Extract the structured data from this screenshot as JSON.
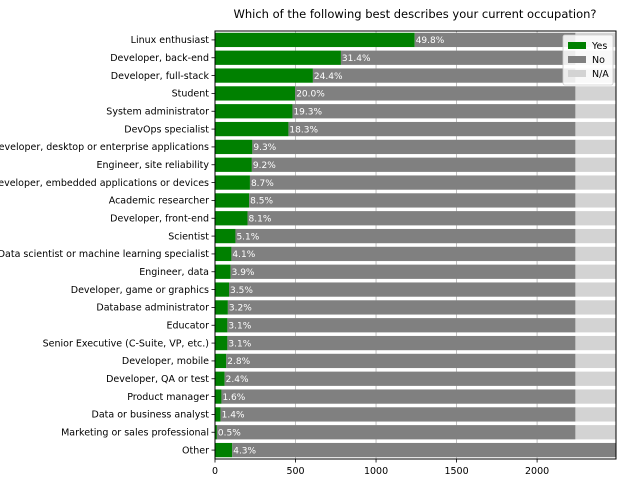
{
  "chart_data": {
    "type": "bar",
    "orientation": "horizontal",
    "stacked": true,
    "title": "Which of the following best describes your current occupation?",
    "xlabel": "",
    "ylabel": "",
    "xlim": [
      0,
      2490
    ],
    "xticks": [
      0,
      500,
      1000,
      1500,
      2000
    ],
    "grid": "vertical",
    "legend_position": "top-right",
    "categories": [
      "Linux enthusiast",
      "Developer, back-end",
      "Developer, full-stack",
      "Student",
      "System administrator",
      "DevOps specialist",
      "Developer, desktop or enterprise applications",
      "Engineer, site reliability",
      "Developer, embedded applications or devices",
      "Academic researcher",
      "Developer, front-end",
      "Scientist",
      "Data scientist or machine learning specialist",
      "Engineer, data",
      "Developer, game or graphics",
      "Database administrator",
      "Educator",
      "Senior Executive (C-Suite, VP, etc.)",
      "Developer, mobile",
      "Developer, QA or test",
      "Product manager",
      "Data or business analyst",
      "Marketing or sales professional",
      "Other"
    ],
    "bar_labels": [
      "49.8%",
      "31.4%",
      "24.4%",
      "20.0%",
      "19.3%",
      "18.3%",
      "9.3%",
      "9.2%",
      "8.7%",
      "8.5%",
      "8.1%",
      "5.1%",
      "4.1%",
      "3.9%",
      "3.5%",
      "3.2%",
      "3.1%",
      "3.1%",
      "2.8%",
      "2.4%",
      "1.6%",
      "1.4%",
      "0.5%",
      "4.3%"
    ],
    "series": [
      {
        "name": "Yes",
        "color": "#008000",
        "values": [
          1240,
          782,
          608,
          498,
          481,
          456,
          232,
          229,
          217,
          212,
          202,
          127,
          102,
          97,
          87,
          80,
          77,
          77,
          70,
          60,
          40,
          35,
          12,
          107
        ]
      },
      {
        "name": "No",
        "color": "#808080",
        "values": [
          998,
          1456,
          1630,
          1740,
          1757,
          1782,
          2006,
          2009,
          2021,
          2026,
          2036,
          2111,
          2136,
          2141,
          2151,
          2158,
          2161,
          2161,
          2168,
          2178,
          2198,
          2203,
          2226,
          2383
        ]
      },
      {
        "name": "N/A",
        "color": "#d3d3d3",
        "values": [
          252,
          252,
          252,
          252,
          252,
          252,
          252,
          252,
          252,
          252,
          252,
          252,
          252,
          252,
          252,
          252,
          252,
          252,
          252,
          252,
          252,
          252,
          252,
          0
        ]
      }
    ]
  }
}
